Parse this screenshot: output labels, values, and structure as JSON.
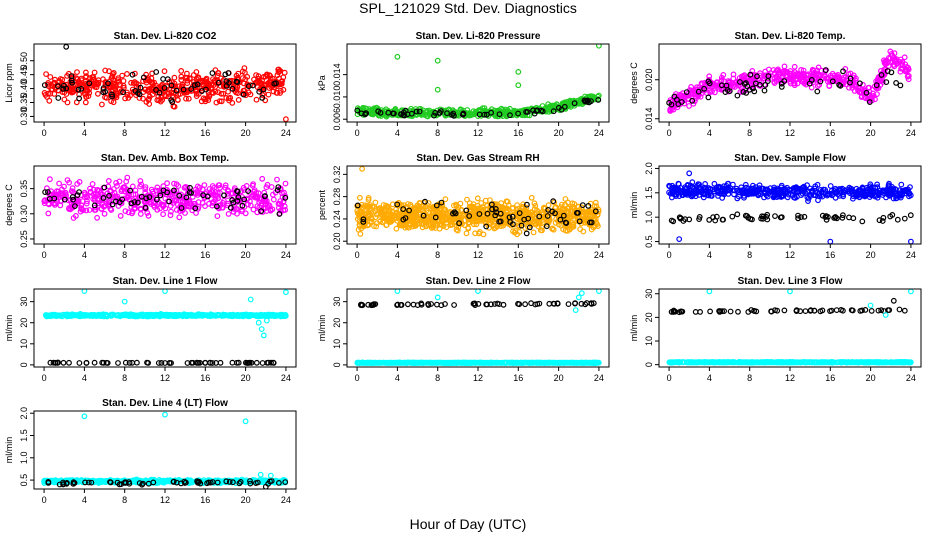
{
  "figure": {
    "title": "SPL_121029  Std. Dev. Diagnostics",
    "xlabel": "Hour of Day (UTC)",
    "xticks": [
      0,
      4,
      8,
      12,
      16,
      20,
      24
    ],
    "xlim": [
      -1,
      25
    ]
  },
  "colors": {
    "red": "#ff0000",
    "green": "#22cc22",
    "magenta": "#ff00ff",
    "orange": "#ffaa00",
    "blue": "#0000ff",
    "cyan": "#00ffff",
    "black": "#000000"
  },
  "chart_data": [
    {
      "type": "scatter",
      "title": "Stan. Dev. Li-820 CO2",
      "ylabel": "Licor ppm",
      "ylim": [
        0.28,
        0.56
      ],
      "yticks": [
        "0.30",
        "0.35",
        "0.40",
        "0.45",
        "0.50"
      ],
      "series": [
        {
          "color": "red",
          "baseline": [
            [
              0,
              0.41
            ],
            [
              12,
              0.4
            ],
            [
              24,
              0.42
            ]
          ],
          "spread": 0.045,
          "n": 500
        },
        {
          "color": "black",
          "baseline": [
            [
              0,
              0.4
            ],
            [
              12,
              0.4
            ],
            [
              24,
              0.42
            ]
          ],
          "spread": 0.04,
          "n": 60
        }
      ],
      "outliers": [
        {
          "x": 2.2,
          "y": 0.55,
          "color": "black"
        },
        {
          "x": 24,
          "y": 0.29,
          "color": "red"
        }
      ]
    },
    {
      "type": "scatter",
      "title": "Stan. Dev. Li-820 Pressure",
      "ylabel": "kPa",
      "ylim": [
        0.0055,
        0.0195
      ],
      "yticks": [
        "0.006",
        "0.010",
        "0.014"
      ],
      "series": [
        {
          "color": "green",
          "baseline": [
            [
              0,
              0.0075
            ],
            [
              4,
              0.0071
            ],
            [
              16,
              0.0071
            ],
            [
              20,
              0.0082
            ],
            [
              24,
              0.01
            ]
          ],
          "spread": 0.0006,
          "n": 500
        },
        {
          "color": "black",
          "baseline": [
            [
              0,
              0.0072
            ],
            [
              16,
              0.007
            ],
            [
              20,
              0.008
            ],
            [
              24,
              0.0098
            ]
          ],
          "spread": 0.0005,
          "n": 60
        }
      ],
      "outliers": [
        {
          "x": 4,
          "y": 0.0172,
          "color": "green"
        },
        {
          "x": 8,
          "y": 0.0165,
          "color": "green"
        },
        {
          "x": 16,
          "y": 0.0121,
          "color": "green"
        },
        {
          "x": 16,
          "y": 0.0145,
          "color": "green"
        },
        {
          "x": 8,
          "y": 0.0113,
          "color": "green"
        },
        {
          "x": 24,
          "y": 0.0192,
          "color": "green"
        }
      ]
    },
    {
      "type": "scatter",
      "title": "Stan. Dev. Li-820 Temp.",
      "ylabel": "degrees C",
      "ylim": [
        0.0135,
        0.0255
      ],
      "yticks": [
        "0.014",
        "0.020"
      ],
      "series": [
        {
          "color": "magenta",
          "baseline": [
            [
              0,
              0.016
            ],
            [
              4,
              0.019
            ],
            [
              12,
              0.0205
            ],
            [
              18,
              0.02
            ],
            [
              20,
              0.0175
            ],
            [
              22,
              0.0235
            ],
            [
              24,
              0.021
            ]
          ],
          "spread": 0.0012,
          "n": 500
        },
        {
          "color": "black",
          "baseline": [
            [
              0,
              0.017
            ],
            [
              4,
              0.0185
            ],
            [
              12,
              0.02
            ],
            [
              18,
              0.02
            ],
            [
              20,
              0.018
            ],
            [
              22,
              0.021
            ],
            [
              24,
              0.016
            ]
          ],
          "spread": 0.0012,
          "n": 60
        }
      ],
      "outliers": []
    },
    {
      "type": "scatter",
      "title": "Stan. Dev. Amb. Box Temp.",
      "ylabel": "degrees C",
      "ylim": [
        0.24,
        0.395
      ],
      "yticks": [
        "0.25",
        "0.30",
        "0.35"
      ],
      "series": [
        {
          "color": "magenta",
          "baseline": [
            [
              0,
              0.33
            ],
            [
              24,
              0.33
            ]
          ],
          "spread": 0.028,
          "n": 500
        },
        {
          "color": "black",
          "baseline": [
            [
              0,
              0.33
            ],
            [
              24,
              0.33
            ]
          ],
          "spread": 0.025,
          "n": 60
        }
      ],
      "outliers": []
    },
    {
      "type": "scatter",
      "title": "Stan. Dev. Gas Stream RH",
      "ylabel": "percent",
      "ylim": [
        0.195,
        0.335
      ],
      "yticks": [
        "0.20",
        "0.24",
        "0.28",
        "0.32"
      ],
      "series": [
        {
          "color": "orange",
          "baseline": [
            [
              0,
              0.245
            ],
            [
              24,
              0.245
            ]
          ],
          "spread": 0.022,
          "n": 900
        },
        {
          "color": "black",
          "baseline": [
            [
              0,
              0.25
            ],
            [
              24,
              0.245
            ]
          ],
          "spread": 0.02,
          "n": 60
        }
      ],
      "outliers": [
        {
          "x": 0.5,
          "y": 0.33,
          "color": "orange"
        }
      ]
    },
    {
      "type": "scatter",
      "title": "Stan. Dev. Sample Flow",
      "ylabel": "ml/min",
      "ylim": [
        0.45,
        2.05
      ],
      "yticks": [
        "0.5",
        "1.0",
        "1.5",
        "2.0"
      ],
      "series": [
        {
          "color": "blue",
          "baseline": [
            [
              0,
              1.55
            ],
            [
              24,
              1.5
            ]
          ],
          "spread": 0.12,
          "n": 500
        },
        {
          "color": "black",
          "baseline": [
            [
              0,
              0.95
            ],
            [
              12,
              1.0
            ],
            [
              24,
              1.0
            ]
          ],
          "spread": 0.07,
          "n": 60
        }
      ],
      "outliers": [
        {
          "x": 2,
          "y": 1.9,
          "color": "blue"
        },
        {
          "x": 16,
          "y": 0.5,
          "color": "blue"
        },
        {
          "x": 24,
          "y": 0.5,
          "color": "blue"
        },
        {
          "x": 1,
          "y": 0.55,
          "color": "blue"
        }
      ]
    },
    {
      "type": "scatter",
      "title": "Stan. Dev. Line 1 Flow",
      "ylabel": "ml/min",
      "ylim": [
        -1,
        36
      ],
      "yticks": [
        "0",
        "10",
        "20",
        "30"
      ],
      "series": [
        {
          "color": "cyan",
          "baseline": [
            [
              0,
              23.5
            ],
            [
              24,
              23.5
            ]
          ],
          "spread": 0.4,
          "n": 500
        },
        {
          "color": "black",
          "baseline": [
            [
              0,
              1
            ],
            [
              24,
              1
            ]
          ],
          "spread": 0.1,
          "n": 60
        }
      ],
      "outliers": [
        {
          "x": 4,
          "y": 35,
          "color": "cyan"
        },
        {
          "x": 8,
          "y": 30,
          "color": "cyan"
        },
        {
          "x": 12,
          "y": 35,
          "color": "cyan"
        },
        {
          "x": 20.5,
          "y": 31,
          "color": "cyan"
        },
        {
          "x": 24,
          "y": 34.5,
          "color": "cyan"
        },
        {
          "x": 21.3,
          "y": 20,
          "color": "cyan"
        },
        {
          "x": 21.6,
          "y": 17,
          "color": "cyan"
        },
        {
          "x": 21.8,
          "y": 14,
          "color": "cyan"
        },
        {
          "x": 22.1,
          "y": 21,
          "color": "cyan"
        }
      ]
    },
    {
      "type": "scatter",
      "title": "Stan. Dev. Line 2 Flow",
      "ylabel": "ml/min",
      "ylim": [
        -1,
        36
      ],
      "yticks": [
        "0",
        "10",
        "20",
        "30"
      ],
      "series": [
        {
          "color": "cyan",
          "baseline": [
            [
              0,
              1
            ],
            [
              24,
              1
            ]
          ],
          "spread": 0.1,
          "n": 500
        },
        {
          "color": "black",
          "baseline": [
            [
              0,
              28.5
            ],
            [
              24,
              29
            ]
          ],
          "spread": 0.4,
          "n": 60
        }
      ],
      "outliers": [
        {
          "x": 4,
          "y": 35,
          "color": "cyan"
        },
        {
          "x": 8,
          "y": 32,
          "color": "cyan"
        },
        {
          "x": 12,
          "y": 35,
          "color": "cyan"
        },
        {
          "x": 22,
          "y": 32,
          "color": "cyan"
        },
        {
          "x": 22.3,
          "y": 34,
          "color": "cyan"
        },
        {
          "x": 24,
          "y": 35,
          "color": "cyan"
        },
        {
          "x": 21.7,
          "y": 26,
          "color": "cyan"
        }
      ]
    },
    {
      "type": "scatter",
      "title": "Stan. Dev. Line 3 Flow",
      "ylabel": "ml/min",
      "ylim": [
        -1,
        32
      ],
      "yticks": [
        "0",
        "10",
        "20",
        "30"
      ],
      "series": [
        {
          "color": "cyan",
          "baseline": [
            [
              0,
              1
            ],
            [
              24,
              1
            ]
          ],
          "spread": 0.1,
          "n": 500
        },
        {
          "color": "black",
          "baseline": [
            [
              0,
              22.5
            ],
            [
              24,
              23
            ]
          ],
          "spread": 0.4,
          "n": 60
        }
      ],
      "outliers": [
        {
          "x": 4,
          "y": 31,
          "color": "cyan"
        },
        {
          "x": 12,
          "y": 31,
          "color": "cyan"
        },
        {
          "x": 20,
          "y": 25,
          "color": "cyan"
        },
        {
          "x": 21.5,
          "y": 21,
          "color": "cyan"
        },
        {
          "x": 22.3,
          "y": 27,
          "color": "black"
        },
        {
          "x": 24,
          "y": 31,
          "color": "cyan"
        }
      ]
    },
    {
      "type": "scatter",
      "title": "Stan. Dev. Line 4 (LT) Flow",
      "ylabel": "ml/min",
      "ylim": [
        0.3,
        2.05
      ],
      "yticks": [
        "0.5",
        "1.0",
        "1.5",
        "2.0"
      ],
      "series": [
        {
          "color": "cyan",
          "baseline": [
            [
              0,
              0.47
            ],
            [
              24,
              0.47
            ]
          ],
          "spread": 0.03,
          "n": 500
        },
        {
          "color": "black",
          "baseline": [
            [
              0,
              0.43
            ],
            [
              24,
              0.45
            ]
          ],
          "spread": 0.03,
          "n": 60
        }
      ],
      "outliers": [
        {
          "x": 4,
          "y": 1.93,
          "color": "cyan"
        },
        {
          "x": 12,
          "y": 1.97,
          "color": "cyan"
        },
        {
          "x": 20,
          "y": 1.82,
          "color": "cyan"
        },
        {
          "x": 22,
          "y": 0.35,
          "color": "black"
        },
        {
          "x": 21.5,
          "y": 0.62,
          "color": "cyan"
        },
        {
          "x": 22.5,
          "y": 0.6,
          "color": "cyan"
        }
      ]
    }
  ]
}
